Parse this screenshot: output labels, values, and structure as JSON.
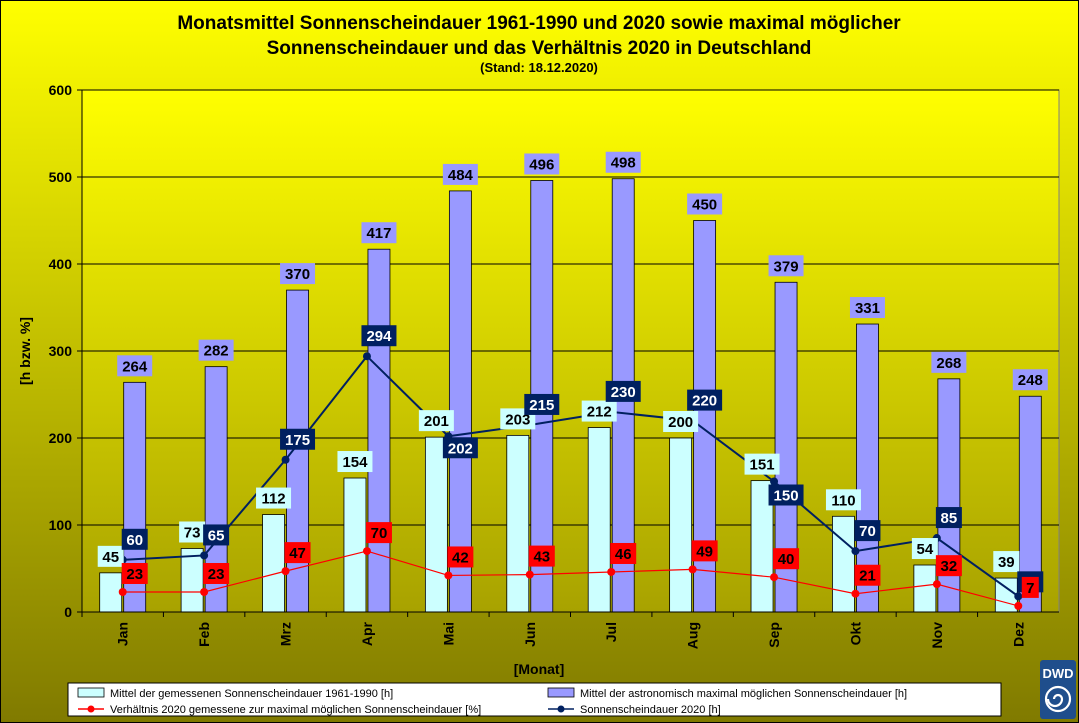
{
  "colors": {
    "bg_top": "#ffff00",
    "bg_bottom": "#807a00",
    "plot_top": "#ffff00",
    "plot_bottom": "#a8a200",
    "bar_mean": "#ccffff",
    "bar_max": "#9999ff",
    "line_sun2020": "#002060",
    "line_ratio": "#ff0000",
    "label_mean_bg": "#ccffff",
    "label_max_bg": "#9999ff",
    "label_sun2020_bg": "#002060",
    "label_ratio_bg": "#ff0000",
    "logo": "#1f4e8c"
  },
  "logo": {
    "text": "DWD",
    "icon": "dwd-spiral-icon"
  },
  "chart_data": {
    "type": "bar",
    "title": "Monatsmittel Sonnenscheindauer 1961-1990 und 2020 sowie maximal möglicher",
    "title_line2": "Sonnenscheindauer und das Verhältnis 2020 in Deutschland",
    "subtitle": "(Stand: 18.12.2020)",
    "xlabel": "[Monat]",
    "ylabel": "[h bzw. %]",
    "ylim": [
      0,
      600
    ],
    "yticks": [
      "0",
      "100",
      "200",
      "300",
      "400",
      "500",
      "600"
    ],
    "grid": true,
    "legend_position": "bottom",
    "categories": [
      "Jan",
      "Feb",
      "Mrz",
      "Apr",
      "Mai",
      "Jun",
      "Jul",
      "Aug",
      "Sep",
      "Okt",
      "Nov",
      "Dez"
    ],
    "series": [
      {
        "key": "mean",
        "kind": "bar",
        "name": "Mittel der gemessenen Sonnenscheindauer 1961-1990 [h]",
        "values": [
          45,
          73,
          112,
          154,
          201,
          203,
          212,
          200,
          151,
          110,
          54,
          39
        ]
      },
      {
        "key": "max",
        "kind": "bar",
        "name": "Mittel der astronomisch maximal möglichen Sonnenscheindauer [h]",
        "values": [
          264,
          282,
          370,
          417,
          484,
          496,
          498,
          450,
          379,
          331,
          268,
          248
        ]
      },
      {
        "key": "ratio",
        "kind": "line",
        "name": "Verhältnis 2020 gemessene zur maximal möglichen Sonnenscheindauer [%]",
        "values": [
          23,
          23,
          47,
          70,
          42,
          43,
          46,
          49,
          40,
          21,
          32,
          7
        ]
      },
      {
        "key": "sun2020",
        "kind": "line",
        "name": "Sonnenscheindauer 2020 [h]",
        "values": [
          60,
          65,
          175,
          294,
          202,
          215,
          230,
          220,
          150,
          70,
          85,
          18
        ]
      }
    ]
  }
}
